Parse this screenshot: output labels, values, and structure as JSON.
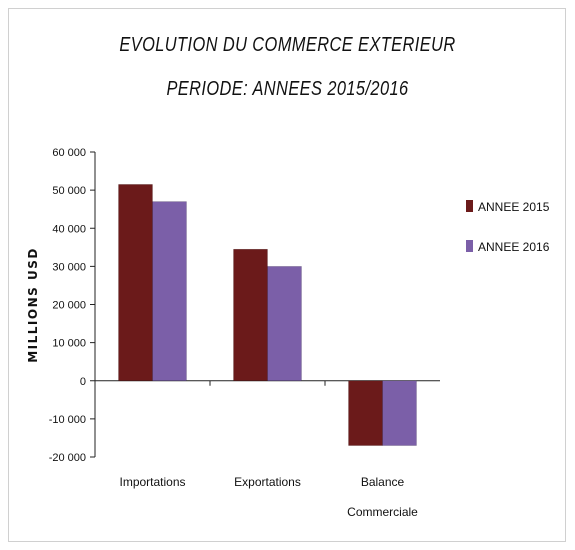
{
  "chart_data": {
    "type": "bar",
    "title_line1": "EVOLUTION  DU  COMMERCE  EXTERIEUR",
    "title_line2": "PERIODE: ANNEES  2015/2016",
    "ylabel": "MILLIONS USD",
    "xlabel": "",
    "ylim": [
      -20000,
      60000
    ],
    "ytick_values": [
      -20000,
      -10000,
      0,
      10000,
      20000,
      30000,
      40000,
      50000,
      60000
    ],
    "ytick_labels": [
      "-20 000",
      "-10 000",
      "0",
      "10 000",
      "20 000",
      "30 000",
      "40 000",
      "50 000",
      "60 000"
    ],
    "categories": [
      [
        "Importations"
      ],
      [
        "Exportations"
      ],
      [
        "Balance",
        "Commerciale"
      ]
    ],
    "series": [
      {
        "name": "ANNEE 2015",
        "color": "#6b1a1a",
        "values": [
          51500,
          34500,
          -17000
        ]
      },
      {
        "name": "ANNEE 2016",
        "color": "#7b5fa8",
        "values": [
          47000,
          30000,
          -17000
        ]
      }
    ],
    "grid": false,
    "legend_position": "right"
  }
}
